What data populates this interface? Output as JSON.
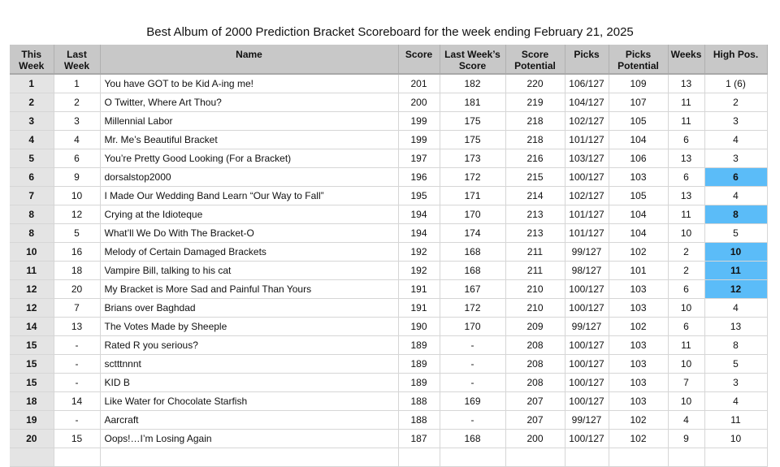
{
  "title": "Best Album of 2000 Prediction Bracket Scoreboard for the week ending February 21, 2025",
  "highlight_color": "#5bbcf8",
  "columns": [
    "This Week",
    "Last Week",
    "Name",
    "Score",
    "Last Week’s Score",
    "Score Potential",
    "Picks",
    "Picks Potential",
    "Weeks",
    "High Pos."
  ],
  "columns_lines": [
    [
      "This",
      "Week"
    ],
    [
      "Last",
      "Week"
    ],
    [
      "Name"
    ],
    [
      "Score"
    ],
    [
      "Last Week’s",
      "Score"
    ],
    [
      "Score",
      "Potential"
    ],
    [
      "Picks"
    ],
    [
      "Picks",
      "Potential"
    ],
    [
      "Weeks"
    ],
    [
      "High Pos."
    ]
  ],
  "rows": [
    {
      "this": "1",
      "last": "1",
      "name": "You have GOT to be Kid A-ing me!",
      "score": "201",
      "last_score": "182",
      "potential": "220",
      "picks": "106/127",
      "picks_potential": "109",
      "weeks": "13",
      "high": "1 (6)",
      "high_new": false
    },
    {
      "this": "2",
      "last": "2",
      "name": "O Twitter, Where Art Thou?",
      "score": "200",
      "last_score": "181",
      "potential": "219",
      "picks": "104/127",
      "picks_potential": "107",
      "weeks": "11",
      "high": "2",
      "high_new": false
    },
    {
      "this": "3",
      "last": "3",
      "name": "Millennial Labor",
      "score": "199",
      "last_score": "175",
      "potential": "218",
      "picks": "102/127",
      "picks_potential": "105",
      "weeks": "11",
      "high": "3",
      "high_new": false
    },
    {
      "this": "4",
      "last": "4",
      "name": "Mr. Me’s Beautiful Bracket",
      "score": "199",
      "last_score": "175",
      "potential": "218",
      "picks": "101/127",
      "picks_potential": "104",
      "weeks": "6",
      "high": "4",
      "high_new": false
    },
    {
      "this": "5",
      "last": "6",
      "name": "You’re Pretty Good Looking (For a Bracket)",
      "score": "197",
      "last_score": "173",
      "potential": "216",
      "picks": "103/127",
      "picks_potential": "106",
      "weeks": "13",
      "high": "3",
      "high_new": false
    },
    {
      "this": "6",
      "last": "9",
      "name": "dorsalstop2000",
      "score": "196",
      "last_score": "172",
      "potential": "215",
      "picks": "100/127",
      "picks_potential": "103",
      "weeks": "6",
      "high": "6",
      "high_new": true
    },
    {
      "this": "7",
      "last": "10",
      "name": "I Made Our Wedding Band Learn “Our Way to Fall”",
      "score": "195",
      "last_score": "171",
      "potential": "214",
      "picks": "102/127",
      "picks_potential": "105",
      "weeks": "13",
      "high": "4",
      "high_new": false
    },
    {
      "this": "8",
      "last": "12",
      "name": "Crying at the Idioteque",
      "score": "194",
      "last_score": "170",
      "potential": "213",
      "picks": "101/127",
      "picks_potential": "104",
      "weeks": "11",
      "high": "8",
      "high_new": true
    },
    {
      "this": "8",
      "last": "5",
      "name": "What’ll We Do With The Bracket-O",
      "score": "194",
      "last_score": "174",
      "potential": "213",
      "picks": "101/127",
      "picks_potential": "104",
      "weeks": "10",
      "high": "5",
      "high_new": false
    },
    {
      "this": "10",
      "last": "16",
      "name": "Melody of Certain Damaged Brackets",
      "score": "192",
      "last_score": "168",
      "potential": "211",
      "picks": "99/127",
      "picks_potential": "102",
      "weeks": "2",
      "high": "10",
      "high_new": true
    },
    {
      "this": "11",
      "last": "18",
      "name": "Vampire Bill, talking to his cat",
      "score": "192",
      "last_score": "168",
      "potential": "211",
      "picks": "98/127",
      "picks_potential": "101",
      "weeks": "2",
      "high": "11",
      "high_new": true
    },
    {
      "this": "12",
      "last": "20",
      "name": "My Bracket is More Sad and Painful Than Yours",
      "score": "191",
      "last_score": "167",
      "potential": "210",
      "picks": "100/127",
      "picks_potential": "103",
      "weeks": "6",
      "high": "12",
      "high_new": true
    },
    {
      "this": "12",
      "last": "7",
      "name": "Brians over Baghdad",
      "score": "191",
      "last_score": "172",
      "potential": "210",
      "picks": "100/127",
      "picks_potential": "103",
      "weeks": "10",
      "high": "4",
      "high_new": false
    },
    {
      "this": "14",
      "last": "13",
      "name": "The Votes Made by Sheeple",
      "score": "190",
      "last_score": "170",
      "potential": "209",
      "picks": "99/127",
      "picks_potential": "102",
      "weeks": "6",
      "high": "13",
      "high_new": false
    },
    {
      "this": "15",
      "last": "-",
      "name": "Rated R you serious?",
      "score": "189",
      "last_score": "-",
      "potential": "208",
      "picks": "100/127",
      "picks_potential": "103",
      "weeks": "11",
      "high": "8",
      "high_new": false
    },
    {
      "this": "15",
      "last": "-",
      "name": "sctttnnnt",
      "score": "189",
      "last_score": "-",
      "potential": "208",
      "picks": "100/127",
      "picks_potential": "103",
      "weeks": "10",
      "high": "5",
      "high_new": false
    },
    {
      "this": "15",
      "last": "-",
      "name": "KID B",
      "score": "189",
      "last_score": "-",
      "potential": "208",
      "picks": "100/127",
      "picks_potential": "103",
      "weeks": "7",
      "high": "3",
      "high_new": false
    },
    {
      "this": "18",
      "last": "14",
      "name": "Like Water for Chocolate Starfish",
      "score": "188",
      "last_score": "169",
      "potential": "207",
      "picks": "100/127",
      "picks_potential": "103",
      "weeks": "10",
      "high": "4",
      "high_new": false
    },
    {
      "this": "19",
      "last": "-",
      "name": "Aarcraft",
      "score": "188",
      "last_score": "-",
      "potential": "207",
      "picks": "99/127",
      "picks_potential": "102",
      "weeks": "4",
      "high": "11",
      "high_new": false
    },
    {
      "this": "20",
      "last": "15",
      "name": "Oops!…I’m Losing Again",
      "score": "187",
      "last_score": "168",
      "potential": "200",
      "picks": "100/127",
      "picks_potential": "102",
      "weeks": "9",
      "high": "10",
      "high_new": false
    }
  ]
}
